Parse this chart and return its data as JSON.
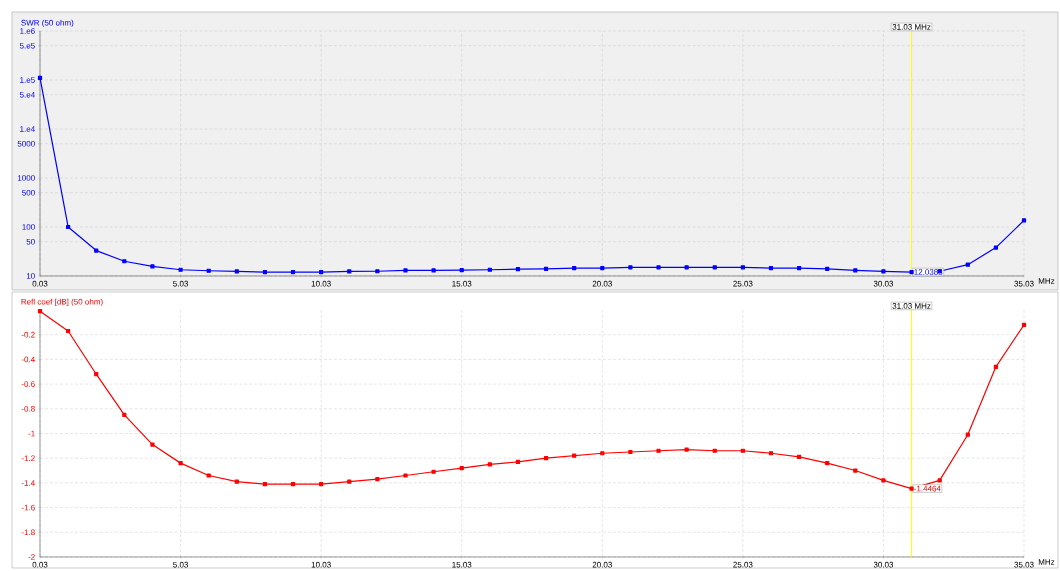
{
  "chart_data": [
    {
      "type": "line",
      "xlabel": "MHz",
      "ylabel": "SWR (50 ohm)",
      "log": "y",
      "grid": true,
      "marker": "square",
      "line_style": "solid",
      "x": [
        0.03,
        1.03,
        2.03,
        3.03,
        4.03,
        5.03,
        6.03,
        7.03,
        8.03,
        9.03,
        10.03,
        11.03,
        12.03,
        13.03,
        14.03,
        15.03,
        16.03,
        17.03,
        18.03,
        19.03,
        20.03,
        21.03,
        22.03,
        23.03,
        24.03,
        25.03,
        26.03,
        27.03,
        28.03,
        29.03,
        30.03,
        31.03,
        32.03,
        33.03,
        34.03,
        35.03
      ],
      "series": [
        {
          "color": "#0000ff",
          "values": [
            110000,
            100,
            33,
            20,
            15.7,
            13.4,
            12.8,
            12.4,
            12,
            12,
            12,
            12.4,
            12.5,
            13,
            13,
            13.2,
            13.4,
            13.8,
            14,
            14.5,
            14.5,
            15,
            15,
            15,
            15,
            15,
            14.5,
            14.5,
            14,
            13,
            12.4,
            12.0383,
            12.5,
            17,
            38,
            136
          ],
          "value_labels": [
            null,
            null,
            null,
            null,
            null,
            null,
            null,
            null,
            null,
            null,
            null,
            null,
            null,
            null,
            null,
            null,
            null,
            null,
            null,
            null,
            null,
            null,
            null,
            null,
            null,
            null,
            null,
            null,
            null,
            null,
            null,
            "12.0383",
            null,
            null,
            null,
            null
          ]
        }
      ],
      "xlim": [
        0.03,
        35.03
      ],
      "xticks": [
        0.03,
        5.03,
        10.03,
        15.03,
        20.03,
        25.03,
        30.03,
        35.03
      ],
      "ylim": [
        10,
        1000000
      ],
      "yticks": [
        10,
        50,
        100,
        500,
        1000,
        5000,
        {
          "value": 10000,
          "label": "1.e4"
        },
        {
          "value": 50000,
          "label": "5.e4"
        },
        {
          "value": 100000,
          "label": "1.e5"
        },
        {
          "value": 500000,
          "label": "5.e5"
        },
        {
          "value": 1000000,
          "label": "1.e6"
        }
      ],
      "ref_lines": [
        {
          "axis": "x",
          "value": 31.03,
          "label": "31.03 MHz",
          "color": "#ffff00"
        }
      ]
    },
    {
      "type": "line",
      "xlabel": "MHz",
      "ylabel": "Refl coef [dB] (50 ohm)",
      "grid": true,
      "marker": "square",
      "line_style": "solid",
      "x": [
        0.03,
        1.03,
        2.03,
        3.03,
        4.03,
        5.03,
        6.03,
        7.03,
        8.03,
        9.03,
        10.03,
        11.03,
        12.03,
        13.03,
        14.03,
        15.03,
        16.03,
        17.03,
        18.03,
        19.03,
        20.03,
        21.03,
        22.03,
        23.03,
        24.03,
        25.03,
        26.03,
        27.03,
        28.03,
        29.03,
        30.03,
        31.03,
        32.03,
        33.03,
        34.03,
        35.03
      ],
      "series": [
        {
          "color": "#ff0000",
          "values": [
            -0.01,
            -0.17,
            -0.52,
            -0.85,
            -1.09,
            -1.24,
            -1.34,
            -1.39,
            -1.41,
            -1.41,
            -1.41,
            -1.39,
            -1.37,
            -1.34,
            -1.31,
            -1.28,
            -1.25,
            -1.23,
            -1.2,
            -1.18,
            -1.16,
            -1.15,
            -1.14,
            -1.13,
            -1.14,
            -1.14,
            -1.16,
            -1.19,
            -1.24,
            -1.3,
            -1.38,
            -1.4464,
            -1.38,
            -1.01,
            -0.46,
            -0.12
          ],
          "value_labels": [
            null,
            null,
            null,
            null,
            null,
            null,
            null,
            null,
            null,
            null,
            null,
            null,
            null,
            null,
            null,
            null,
            null,
            null,
            null,
            null,
            null,
            null,
            null,
            null,
            null,
            null,
            null,
            null,
            null,
            null,
            null,
            "-1.4464",
            null,
            null,
            null,
            null
          ]
        }
      ],
      "xlim": [
        0.03,
        35.03
      ],
      "xticks": [
        0.03,
        5.03,
        10.03,
        15.03,
        20.03,
        25.03,
        30.03,
        35.03
      ],
      "ylim": [
        -2,
        0
      ],
      "yticks": [
        -2,
        -1.8,
        -1.6,
        -1.4,
        -1.2,
        -1,
        -0.8,
        -0.6,
        -0.4,
        -0.2
      ],
      "ref_lines": [
        {
          "axis": "x",
          "value": 31.03,
          "label": "31.03 MHz",
          "color": "#ffff00"
        }
      ]
    }
  ]
}
